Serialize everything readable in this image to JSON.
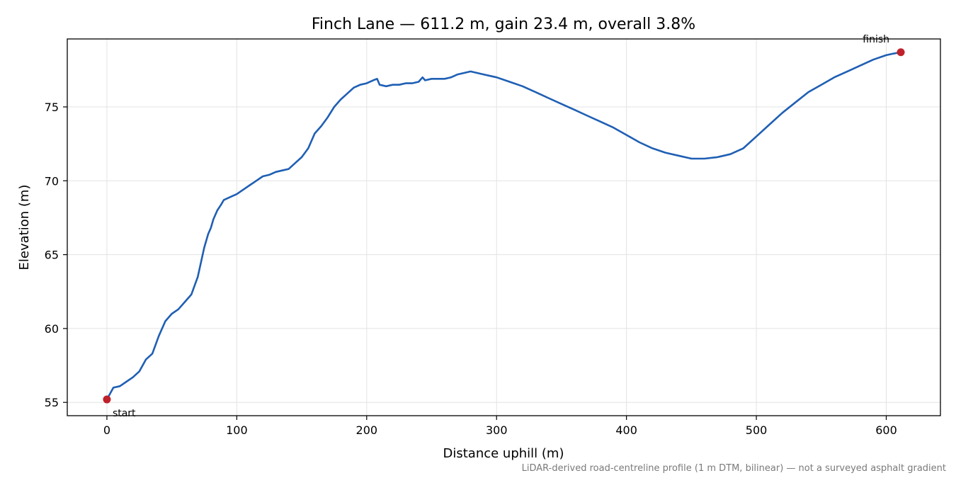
{
  "chart_data": {
    "type": "line",
    "title": "Finch Lane — 611.2 m, gain 23.4 m, overall 3.8%",
    "xlabel": "Distance uphill (m)",
    "ylabel": "Elevation (m)",
    "footnote": "LiDAR-derived road-centreline profile (1 m DTM, bilinear) — not a surveyed asphalt gradient",
    "xlim": [
      -30.5,
      641.7
    ],
    "ylim": [
      54.1,
      79.6
    ],
    "xticks": [
      0,
      100,
      200,
      300,
      400,
      500,
      600
    ],
    "yticks": [
      55,
      60,
      65,
      70,
      75
    ],
    "grid": true,
    "line_color": "#1f5fb4",
    "marker_color": "#c0202a",
    "series": [
      {
        "x": [
          0,
          5,
          10,
          15,
          20,
          25,
          30,
          35,
          40,
          45,
          50,
          55,
          60,
          65,
          70,
          75,
          78,
          80,
          82,
          85,
          88,
          90,
          95,
          100,
          105,
          110,
          115,
          120,
          125,
          130,
          135,
          140,
          145,
          150,
          155,
          160,
          165,
          170,
          175,
          180,
          185,
          190,
          195,
          200,
          205,
          208,
          210,
          215,
          220,
          225,
          230,
          235,
          240,
          243,
          245,
          250,
          255,
          260,
          265,
          270,
          275,
          280,
          285,
          290,
          295,
          300,
          310,
          320,
          330,
          340,
          350,
          360,
          370,
          380,
          390,
          400,
          410,
          420,
          430,
          440,
          450,
          460,
          470,
          480,
          490,
          500,
          510,
          520,
          530,
          540,
          550,
          560,
          570,
          580,
          590,
          600,
          605,
          611.2
        ],
        "y": [
          55.2,
          56.0,
          56.1,
          56.4,
          56.7,
          57.1,
          57.9,
          58.3,
          59.5,
          60.5,
          61.0,
          61.3,
          61.8,
          62.3,
          63.5,
          65.5,
          66.4,
          66.8,
          67.4,
          68.0,
          68.4,
          68.7,
          68.9,
          69.1,
          69.4,
          69.7,
          70.0,
          70.3,
          70.4,
          70.6,
          70.7,
          70.8,
          71.2,
          71.6,
          72.2,
          73.2,
          73.7,
          74.3,
          75.0,
          75.5,
          75.9,
          76.3,
          76.5,
          76.6,
          76.8,
          76.9,
          76.5,
          76.4,
          76.5,
          76.5,
          76.6,
          76.6,
          76.7,
          77.0,
          76.8,
          76.9,
          76.9,
          76.9,
          77.0,
          77.2,
          77.3,
          77.4,
          77.3,
          77.2,
          77.1,
          77.0,
          76.7,
          76.4,
          76.0,
          75.6,
          75.2,
          74.8,
          74.4,
          74.0,
          73.6,
          73.1,
          72.6,
          72.2,
          71.9,
          71.7,
          71.5,
          71.5,
          71.6,
          71.8,
          72.2,
          73.0,
          73.8,
          74.6,
          75.3,
          76.0,
          76.5,
          77.0,
          77.4,
          77.8,
          78.2,
          78.5,
          78.6,
          78.7
        ]
      }
    ],
    "annotations": [
      {
        "label": "start",
        "x": 0,
        "y": 55.2
      },
      {
        "label": "finish",
        "x": 611.2,
        "y": 78.7
      }
    ]
  }
}
